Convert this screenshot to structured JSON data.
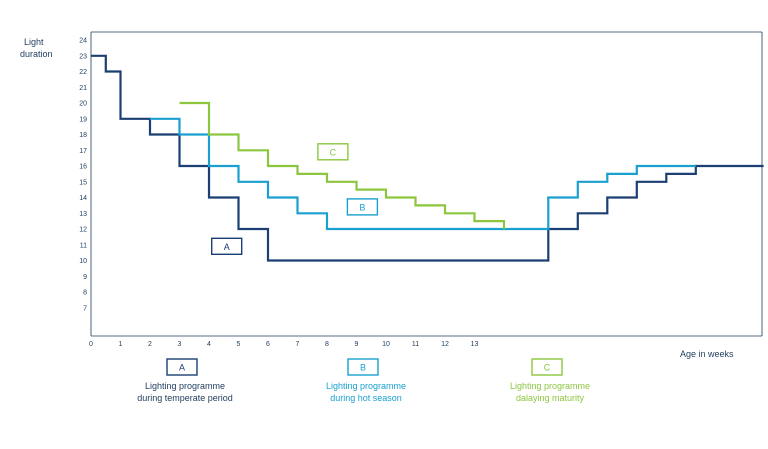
{
  "chart_data": {
    "type": "line",
    "step": true,
    "ylabel_lines": [
      "Light",
      "duration"
    ],
    "xlabel": "Age in weeks",
    "x_ticks": [
      0,
      1,
      2,
      3,
      4,
      5,
      6,
      7,
      8,
      9,
      10,
      11,
      12,
      13
    ],
    "y_ticks": [
      7,
      8,
      9,
      10,
      11,
      12,
      13,
      14,
      15,
      16,
      17,
      18,
      19,
      20,
      21,
      22,
      23,
      24
    ],
    "xlim": [
      0,
      22.8
    ],
    "ylim": [
      4.5,
      24.3
    ],
    "grid": false,
    "series": [
      {
        "name": "A",
        "color": "#1b3f73",
        "points": [
          [
            0,
            23
          ],
          [
            0.5,
            23
          ],
          [
            0.5,
            22
          ],
          [
            1,
            22
          ],
          [
            1,
            19
          ],
          [
            2,
            19
          ],
          [
            2,
            18
          ],
          [
            3,
            18
          ],
          [
            3,
            16
          ],
          [
            4,
            16
          ],
          [
            4,
            14
          ],
          [
            5,
            14
          ],
          [
            5,
            12
          ],
          [
            6,
            12
          ],
          [
            6,
            10
          ],
          [
            15.5,
            10
          ],
          [
            15.5,
            12
          ],
          [
            16.5,
            12
          ],
          [
            16.5,
            13
          ],
          [
            17.5,
            13
          ],
          [
            17.5,
            14
          ],
          [
            18.5,
            14
          ],
          [
            18.5,
            15
          ],
          [
            19.5,
            15
          ],
          [
            19.5,
            15.5
          ],
          [
            20.5,
            15.5
          ],
          [
            20.5,
            16
          ],
          [
            22.8,
            16
          ]
        ]
      },
      {
        "name": "B",
        "color": "#1aa0cf",
        "points": [
          [
            2,
            19
          ],
          [
            3,
            19
          ],
          [
            3,
            18
          ],
          [
            4,
            18
          ],
          [
            4,
            16
          ],
          [
            5,
            16
          ],
          [
            5,
            15
          ],
          [
            6,
            15
          ],
          [
            6,
            14
          ],
          [
            7,
            14
          ],
          [
            7,
            13
          ],
          [
            8,
            13
          ],
          [
            8,
            12
          ],
          [
            15.5,
            12
          ],
          [
            15.5,
            14
          ],
          [
            16.5,
            14
          ],
          [
            16.5,
            15
          ],
          [
            17.5,
            15
          ],
          [
            17.5,
            15.5
          ],
          [
            18.5,
            15.5
          ],
          [
            18.5,
            16
          ],
          [
            20.5,
            16
          ]
        ]
      },
      {
        "name": "C",
        "color": "#8cc63f",
        "points": [
          [
            3,
            20
          ],
          [
            4,
            20
          ],
          [
            4,
            18
          ],
          [
            5,
            18
          ],
          [
            5,
            17
          ],
          [
            6,
            17
          ],
          [
            6,
            16
          ],
          [
            7,
            16
          ],
          [
            7,
            15.5
          ],
          [
            8,
            15.5
          ],
          [
            8,
            15
          ],
          [
            9,
            15
          ],
          [
            9,
            14.5
          ],
          [
            10,
            14.5
          ],
          [
            10,
            14
          ],
          [
            11,
            14
          ],
          [
            11,
            13.5
          ],
          [
            12,
            13.5
          ],
          [
            12,
            13
          ],
          [
            13,
            13
          ],
          [
            13,
            12.5
          ],
          [
            14,
            12.5
          ],
          [
            14,
            12
          ]
        ]
      }
    ],
    "box_labels": [
      {
        "text": "A",
        "x": 4.6,
        "y": 10.9,
        "color": "#1b3f73"
      },
      {
        "text": "B",
        "x": 9.2,
        "y": 13.4,
        "color": "#1aa0cf"
      },
      {
        "text": "C",
        "x": 8.2,
        "y": 16.9,
        "color": "#8cc63f"
      }
    ],
    "legend": [
      {
        "key": "A",
        "lines": [
          "Lighting programme",
          "during temperate period"
        ],
        "color": "#1b3f73",
        "text_color": "#1f3b5c"
      },
      {
        "key": "B",
        "lines": [
          "Lighting programme",
          "during hot season"
        ],
        "color": "#1aa0cf",
        "text_color": "#1aa0cf"
      },
      {
        "key": "C",
        "lines": [
          "Lighting programme",
          "dalaying maturity"
        ],
        "color": "#8cc63f",
        "text_color": "#8cc63f"
      }
    ]
  }
}
